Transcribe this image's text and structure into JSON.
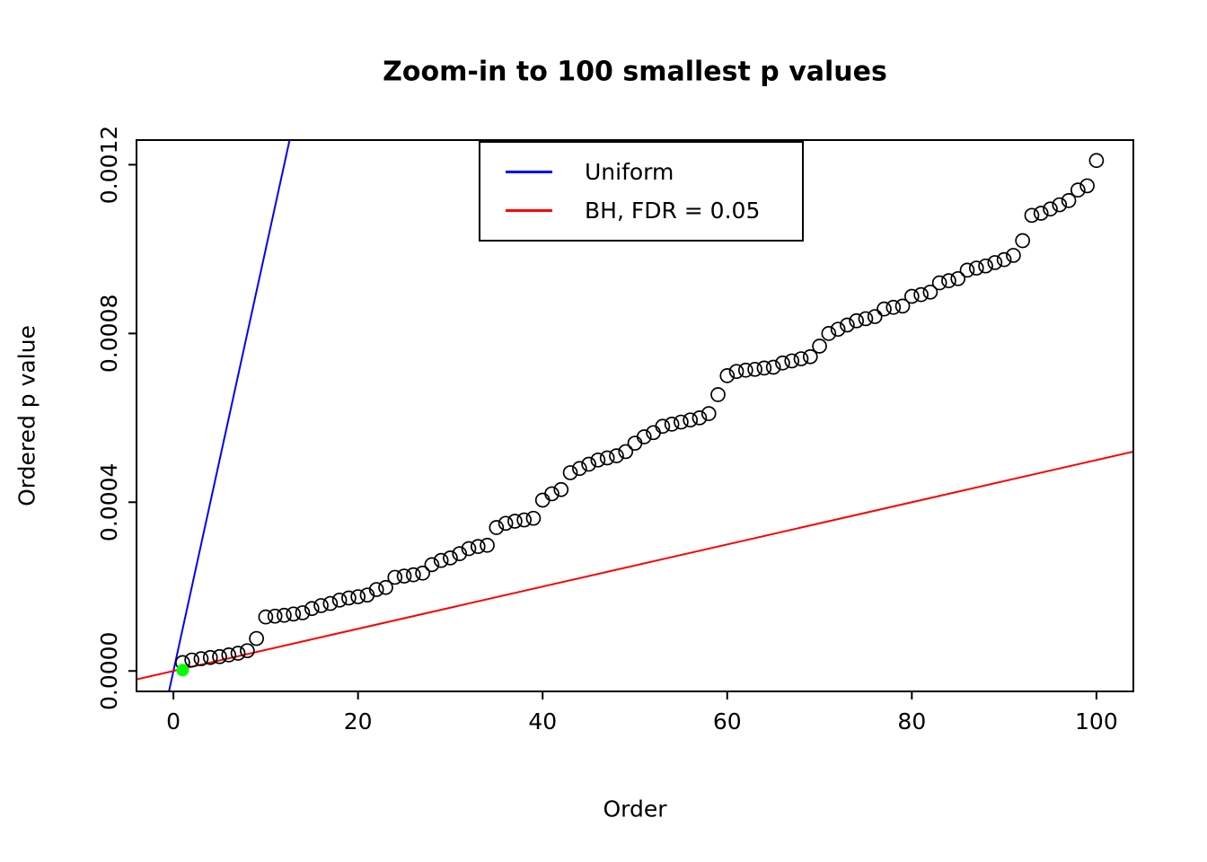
{
  "chart_data": {
    "type": "scatter",
    "title": "Zoom-in to 100 smallest p values",
    "xlabel": "Order",
    "ylabel": "Ordered p value",
    "xlim": [
      -4,
      104
    ],
    "ylim": [
      -4.84e-05,
      0.0012584
    ],
    "x_ticks": [
      0,
      20,
      40,
      60,
      80,
      100
    ],
    "x_tick_labels": [
      "0",
      "20",
      "40",
      "60",
      "80",
      "100"
    ],
    "y_ticks": [
      0,
      0.0004,
      0.0008,
      0.0012
    ],
    "y_tick_labels": [
      "0.0000",
      "0.0004",
      "0.0008",
      "0.0012"
    ],
    "grid": false,
    "box_color": "#000000",
    "points": {
      "marker": "open-circle",
      "color": "#000000",
      "x": [
        1,
        2,
        3,
        4,
        5,
        6,
        7,
        8,
        9,
        10,
        11,
        12,
        13,
        14,
        15,
        16,
        17,
        18,
        19,
        20,
        21,
        22,
        23,
        24,
        25,
        26,
        27,
        28,
        29,
        30,
        31,
        32,
        33,
        34,
        35,
        36,
        37,
        38,
        39,
        40,
        41,
        42,
        43,
        44,
        45,
        46,
        47,
        48,
        49,
        50,
        51,
        52,
        53,
        54,
        55,
        56,
        57,
        58,
        59,
        60,
        61,
        62,
        63,
        64,
        65,
        66,
        67,
        68,
        69,
        70,
        71,
        72,
        73,
        74,
        75,
        76,
        77,
        78,
        79,
        80,
        81,
        82,
        83,
        84,
        85,
        86,
        87,
        88,
        89,
        90,
        91,
        92,
        93,
        94,
        95,
        96,
        97,
        98,
        99,
        100
      ],
      "y": [
        2e-05,
        2.6e-05,
        2.9e-05,
        3.2e-05,
        3.4e-05,
        3.8e-05,
        4.2e-05,
        4.8e-05,
        7.7e-05,
        0.000128,
        0.00013,
        0.000132,
        0.000135,
        0.000138,
        0.000148,
        0.000155,
        0.00016,
        0.000168,
        0.000173,
        0.000176,
        0.00018,
        0.000193,
        0.000198,
        0.000222,
        0.000225,
        0.000228,
        0.000232,
        0.000252,
        0.000262,
        0.000268,
        0.000278,
        0.00029,
        0.000295,
        0.000298,
        0.00034,
        0.00035,
        0.000355,
        0.000358,
        0.000362,
        0.000405,
        0.00042,
        0.00043,
        0.00047,
        0.00048,
        0.00049,
        0.0005,
        0.000505,
        0.00051,
        0.00052,
        0.00054,
        0.000555,
        0.000565,
        0.00058,
        0.000585,
        0.00059,
        0.000595,
        0.0006,
        0.00061,
        0.000655,
        0.0007,
        0.00071,
        0.000713,
        0.000715,
        0.000718,
        0.00072,
        0.00073,
        0.000735,
        0.00074,
        0.000745,
        0.00077,
        0.0008,
        0.00081,
        0.00082,
        0.00083,
        0.000835,
        0.00084,
        0.000858,
        0.000862,
        0.000865,
        0.000888,
        0.000892,
        0.000898,
        0.00092,
        0.000925,
        0.00093,
        0.00095,
        0.000955,
        0.00096,
        0.000968,
        0.000975,
        0.000985,
        0.00102,
        0.00108,
        0.001085,
        0.001095,
        0.001105,
        0.001115,
        0.00114,
        0.00115,
        0.00121
      ]
    },
    "highlight_point": {
      "x": 1,
      "y": 2e-06,
      "color": "#00FF00",
      "marker": "filled-circle"
    },
    "lines": [
      {
        "name": "Uniform",
        "color": "#0000FF",
        "slope": 0.0001,
        "intercept": 0
      },
      {
        "name": "BH, FDR = 0.05",
        "color": "#FF0000",
        "slope": 5e-06,
        "intercept": 0
      }
    ],
    "legend": {
      "position": "top-center",
      "entries": [
        {
          "label": "Uniform",
          "color": "#0000FF"
        },
        {
          "label": "BH, FDR = 0.05",
          "color": "#FF0000"
        }
      ]
    }
  }
}
